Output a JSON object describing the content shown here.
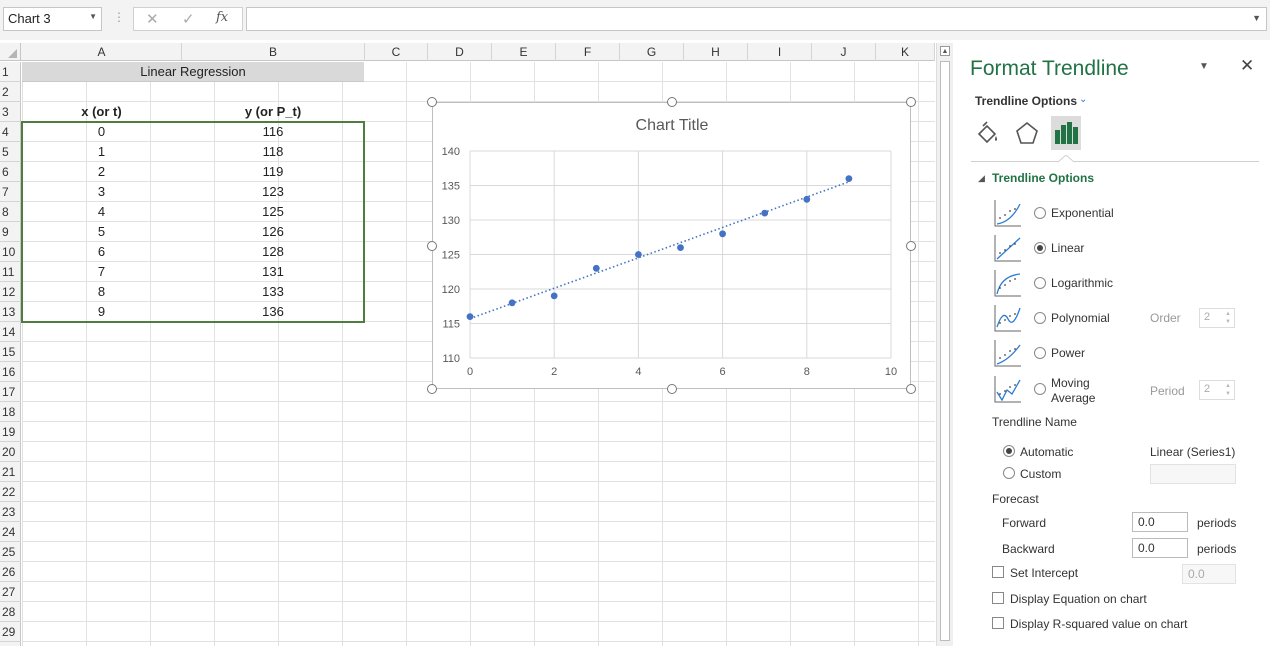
{
  "formula_bar": {
    "name_box": "Chart 3",
    "cancel": "✕",
    "enter": "✓",
    "fx": "fx",
    "formula": ""
  },
  "columns": [
    "A",
    "B",
    "C",
    "D",
    "E",
    "F",
    "G",
    "H",
    "I",
    "J",
    "K"
  ],
  "rows": [
    "1",
    "2",
    "3",
    "4",
    "5",
    "6",
    "7",
    "8",
    "9",
    "10",
    "11",
    "12",
    "13",
    "14",
    "15",
    "16",
    "17",
    "18",
    "19",
    "20",
    "21",
    "22",
    "23",
    "24",
    "25",
    "26",
    "27",
    "28",
    "29"
  ],
  "sheet": {
    "title": "Linear Regression",
    "header_x": "x (or t)",
    "header_y": "y (or P_t)",
    "x_values": [
      "0",
      "1",
      "2",
      "3",
      "4",
      "5",
      "6",
      "7",
      "8",
      "9"
    ],
    "y_values": [
      "116",
      "118",
      "119",
      "123",
      "125",
      "126",
      "128",
      "131",
      "133",
      "136"
    ]
  },
  "chart_data": {
    "type": "scatter",
    "title": "Chart Title",
    "x": [
      0,
      1,
      2,
      3,
      4,
      5,
      6,
      7,
      8,
      9
    ],
    "y": [
      116,
      118,
      119,
      123,
      125,
      126,
      128,
      131,
      133,
      136
    ],
    "xlim": [
      0,
      10
    ],
    "ylim": [
      110,
      140
    ],
    "x_ticks": [
      "0",
      "2",
      "4",
      "6",
      "8",
      "10"
    ],
    "y_ticks": [
      "110",
      "115",
      "120",
      "125",
      "130",
      "135",
      "140"
    ],
    "grid": true,
    "point_color": "#4472c4",
    "trendline": {
      "type": "linear",
      "x": [
        0,
        9
      ],
      "y": [
        115.71,
        135.53
      ],
      "style": "dotted",
      "color": "#4472c4"
    }
  },
  "pane": {
    "title": "Format Trendline",
    "collapse_icon": "▼",
    "close_icon": "✕",
    "tab_label": "Trendline Options",
    "section_title": "Trendline Options",
    "types": [
      {
        "label": "Exponential",
        "selected": false
      },
      {
        "label": "Linear",
        "selected": true
      },
      {
        "label": "Logarithmic",
        "selected": false
      },
      {
        "label": "Polynomial",
        "selected": false
      },
      {
        "label": "Power",
        "selected": false
      },
      {
        "label": "Moving Average",
        "selected": false
      }
    ],
    "order_label": "Order",
    "order_value": "2",
    "period_label": "Period",
    "period_value": "2",
    "name_section": "Trendline Name",
    "name_automatic": "Automatic",
    "name_automatic_value": "Linear (Series1)",
    "name_custom": "Custom",
    "forecast_section": "Forecast",
    "forward_label": "Forward",
    "forward_value": "0.0",
    "backward_label": "Backward",
    "backward_value": "0.0",
    "periods_label": "periods",
    "set_intercept_label": "Set Intercept",
    "set_intercept_value": "0.0",
    "display_equation_label": "Display Equation on chart",
    "display_r2_label": "Display R-squared value on chart"
  }
}
